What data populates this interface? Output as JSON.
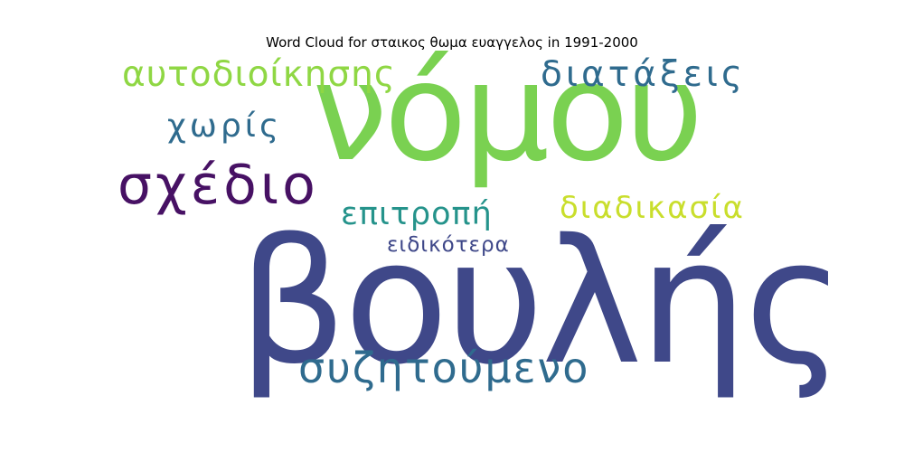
{
  "chart_data": {
    "type": "wordcloud",
    "title": "Word Cloud for σταικος θωμα ευαγγελος in 1991-2000",
    "words": [
      {
        "text": "βουλής",
        "weight": 1.0,
        "color": "#3f4889"
      },
      {
        "text": "νόμου",
        "weight": 0.78,
        "color": "#7ad151"
      },
      {
        "text": "σχέδιο",
        "weight": 0.38,
        "color": "#471164"
      },
      {
        "text": "συζητούμενο",
        "weight": 0.33,
        "color": "#2f6b8e"
      },
      {
        "text": "αυτοδιοίκησης",
        "weight": 0.26,
        "color": "#8fd744"
      },
      {
        "text": "διατάξεις",
        "weight": 0.26,
        "color": "#2f6b8e"
      },
      {
        "text": "χωρίς",
        "weight": 0.24,
        "color": "#2f6b8e"
      },
      {
        "text": "επιτροπή",
        "weight": 0.24,
        "color": "#25938b"
      },
      {
        "text": "διαδικασία",
        "weight": 0.24,
        "color": "#c9de2c"
      },
      {
        "text": "ειδικότερα",
        "weight": 0.16,
        "color": "#3f4889"
      }
    ]
  }
}
